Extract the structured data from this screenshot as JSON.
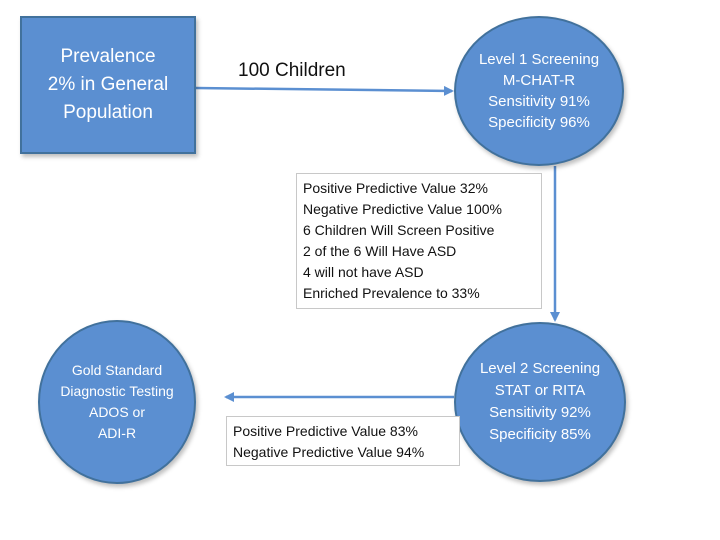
{
  "prevalence": {
    "lines": [
      "Prevalence",
      "2% in General",
      "Population"
    ]
  },
  "children_label": "100 Children",
  "level1": {
    "lines": [
      "Level 1 Screening",
      "M-CHAT-R",
      "Sensitivity 91%",
      "Specificity 96%"
    ]
  },
  "ppv_box_1": {
    "lines": [
      "Positive Predictive Value 32%",
      "Negative Predictive Value 100%",
      "6 Children Will Screen Positive",
      "2 of the 6 Will Have ASD",
      "4 will not have ASD",
      "Enriched Prevalence to 33%"
    ]
  },
  "level2": {
    "lines": [
      "Level 2 Screening",
      "STAT or RITA",
      "Sensitivity 92%",
      "Specificity 85%"
    ]
  },
  "ppv_box_2": {
    "lines": [
      "Positive Predictive Value 83%",
      "Negative Predictive Value 94%"
    ]
  },
  "gold_standard": {
    "lines": [
      "Gold Standard",
      "Diagnostic Testing",
      "ADOS or",
      "ADI-R"
    ]
  },
  "colors": {
    "shape_fill": "#5b8fd1",
    "shape_border": "#41719c",
    "arrow": "#5b8fd1"
  }
}
